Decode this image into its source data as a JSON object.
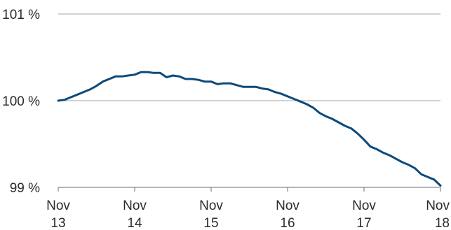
{
  "chart_data": {
    "type": "line",
    "title": "",
    "xlabel": "",
    "ylabel": "",
    "x_tick_labels": [
      {
        "line1": "Nov",
        "line2": "13"
      },
      {
        "line1": "Nov",
        "line2": "14"
      },
      {
        "line1": "Nov",
        "line2": "15"
      },
      {
        "line1": "Nov",
        "line2": "16"
      },
      {
        "line1": "Nov",
        "line2": "17"
      },
      {
        "line1": "Nov",
        "line2": "18"
      }
    ],
    "y_tick_labels": [
      "101 %",
      "100 %",
      "99 %"
    ],
    "y_ticks": [
      101,
      100,
      99
    ],
    "ylim": [
      99,
      101
    ],
    "xlim": [
      2013.8333,
      2018.8333
    ],
    "grid": "horizontal",
    "colors": {
      "line": "#0d4a7a",
      "grid": "#a6a6a6",
      "axis": "#6e6e6e",
      "text": "#2b2b2b"
    },
    "series": [
      {
        "x": [
          2013.8333,
          2013.9167,
          2014.0,
          2014.0833,
          2014.1667,
          2014.25,
          2014.3333,
          2014.4167,
          2014.5,
          2014.5833,
          2014.6667,
          2014.75,
          2014.8333,
          2014.9167,
          2015.0,
          2015.0833,
          2015.1667,
          2015.25,
          2015.3333,
          2015.4167,
          2015.5,
          2015.5833,
          2015.6667,
          2015.75,
          2015.8333,
          2015.9167,
          2016.0,
          2016.0833,
          2016.1667,
          2016.25,
          2016.3333,
          2016.4167,
          2016.5,
          2016.5833,
          2016.6667,
          2016.75,
          2016.8333,
          2016.9167,
          2017.0,
          2017.0833,
          2017.1667,
          2017.25,
          2017.3333,
          2017.4167,
          2017.5,
          2017.5833,
          2017.6667,
          2017.75,
          2017.8333,
          2017.9167,
          2018.0,
          2018.0833,
          2018.1667,
          2018.25,
          2018.3333,
          2018.4167,
          2018.5,
          2018.5833,
          2018.6667,
          2018.75,
          2018.8333
        ],
        "values": [
          100.0,
          100.01,
          100.04,
          100.07,
          100.1,
          100.13,
          100.17,
          100.22,
          100.25,
          100.28,
          100.28,
          100.29,
          100.3,
          100.33,
          100.33,
          100.32,
          100.32,
          100.27,
          100.29,
          100.28,
          100.25,
          100.25,
          100.24,
          100.22,
          100.22,
          100.19,
          100.2,
          100.2,
          100.18,
          100.16,
          100.16,
          100.16,
          100.14,
          100.13,
          100.1,
          100.08,
          100.05,
          100.02,
          99.99,
          99.96,
          99.92,
          99.86,
          99.82,
          99.79,
          99.75,
          99.71,
          99.68,
          99.62,
          99.55,
          99.47,
          99.44,
          99.4,
          99.37,
          99.33,
          99.29,
          99.26,
          99.22,
          99.15,
          99.12,
          99.09,
          99.02
        ]
      }
    ]
  }
}
